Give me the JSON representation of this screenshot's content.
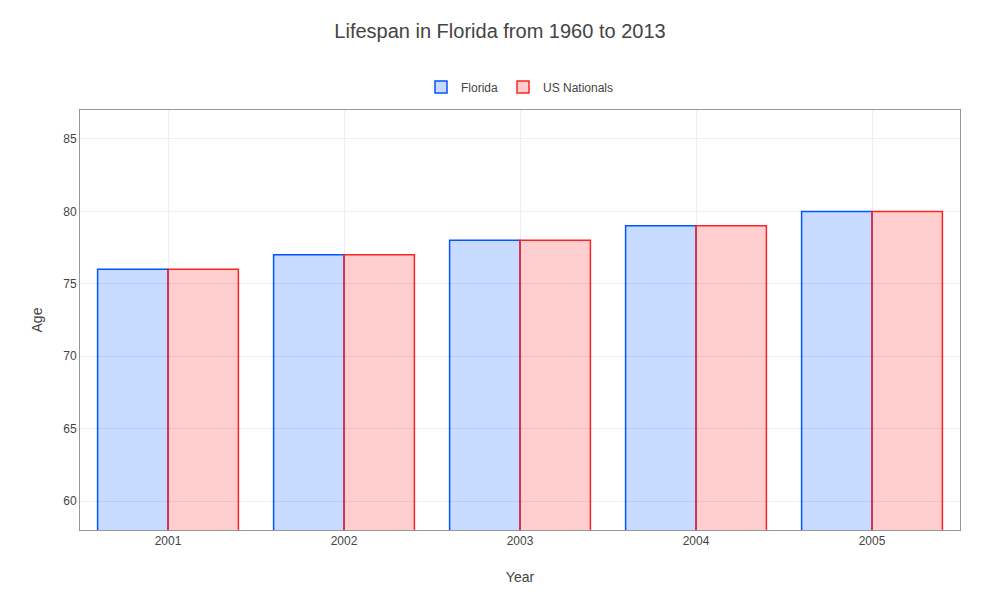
{
  "chart_data": {
    "type": "bar",
    "title": "Lifespan in Florida from 1960 to 2013",
    "x_label": "Year",
    "y_label": "Age",
    "categories": [
      "2001",
      "2002",
      "2003",
      "2004",
      "2005"
    ],
    "series": [
      {
        "name": "Florida",
        "color": "#0055ff",
        "values": [
          76.0,
          77.0,
          78.0,
          79.0,
          80.0
        ]
      },
      {
        "name": "US Nationals",
        "color": "#ff2222",
        "values": [
          76.0,
          77.0,
          78.0,
          79.0,
          80.0
        ]
      }
    ],
    "ylim": [
      58,
      87
    ],
    "yticks": [
      60,
      65,
      70,
      75,
      80,
      85
    ],
    "grid": true,
    "legend": "top"
  }
}
